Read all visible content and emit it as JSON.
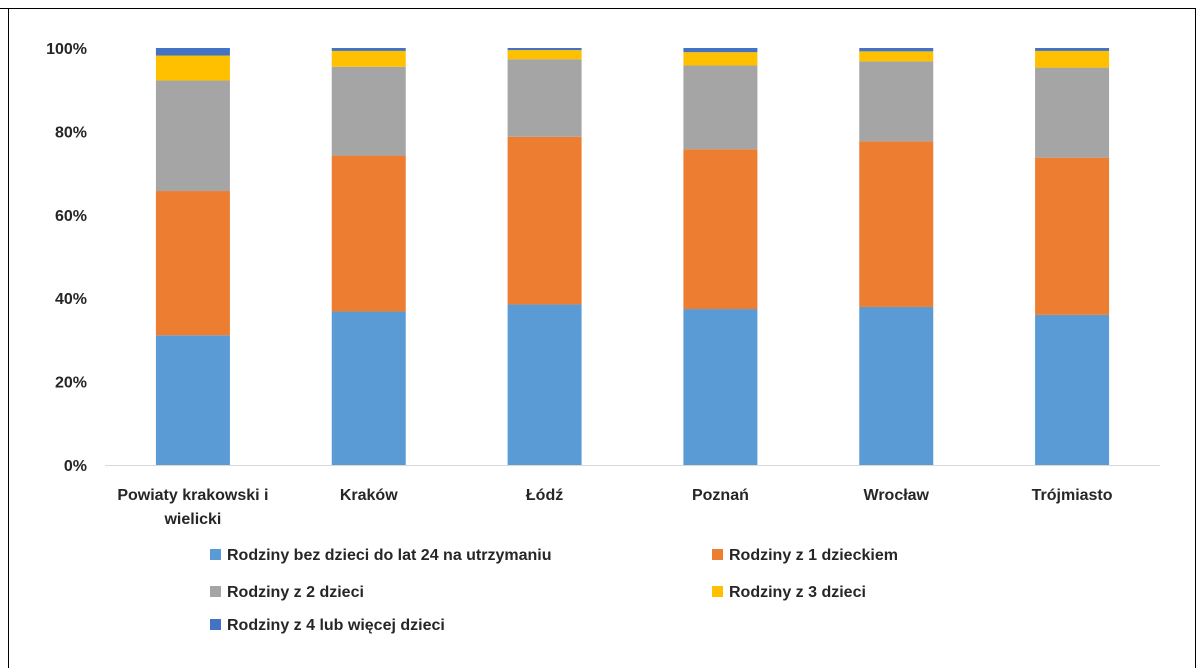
{
  "chart_data": {
    "type": "bar",
    "stacked": true,
    "categories": [
      [
        "Powiaty krakowski i",
        "wielicki"
      ],
      [
        "Kraków"
      ],
      [
        "Łódź"
      ],
      [
        "Poznań"
      ],
      [
        "Wrocław"
      ],
      [
        "Trójmiasto"
      ]
    ],
    "series": [
      {
        "name": "Rodziny bez dzieci do lat 24 na utrzymaniu",
        "color": "#5B9BD5",
        "values": [
          31.1,
          36.8,
          38.5,
          37.4,
          37.9,
          36.0
        ]
      },
      {
        "name": "Rodziny z 1 dzieckiem",
        "color": "#ED7D31",
        "values": [
          34.6,
          37.4,
          40.2,
          38.3,
          39.7,
          37.7
        ]
      },
      {
        "name": "Rodziny z 2 dzieci",
        "color": "#A5A5A5",
        "values": [
          26.5,
          21.3,
          18.6,
          20.1,
          19.2,
          21.6
        ]
      },
      {
        "name": "Rodziny z 3 dzieci",
        "color": "#FFC000",
        "values": [
          6.0,
          3.8,
          2.2,
          3.2,
          2.4,
          4.0
        ]
      },
      {
        "name": "Rodziny z 4 lub więcej dzieci",
        "color": "#4472C4",
        "values": [
          1.8,
          0.7,
          0.5,
          1.0,
          0.8,
          0.7
        ]
      }
    ],
    "ylim": [
      0,
      100
    ],
    "y_ticks": [
      "0%",
      "20%",
      "40%",
      "60%",
      "80%",
      "100%"
    ],
    "grid": false,
    "legend_position": "bottom"
  }
}
